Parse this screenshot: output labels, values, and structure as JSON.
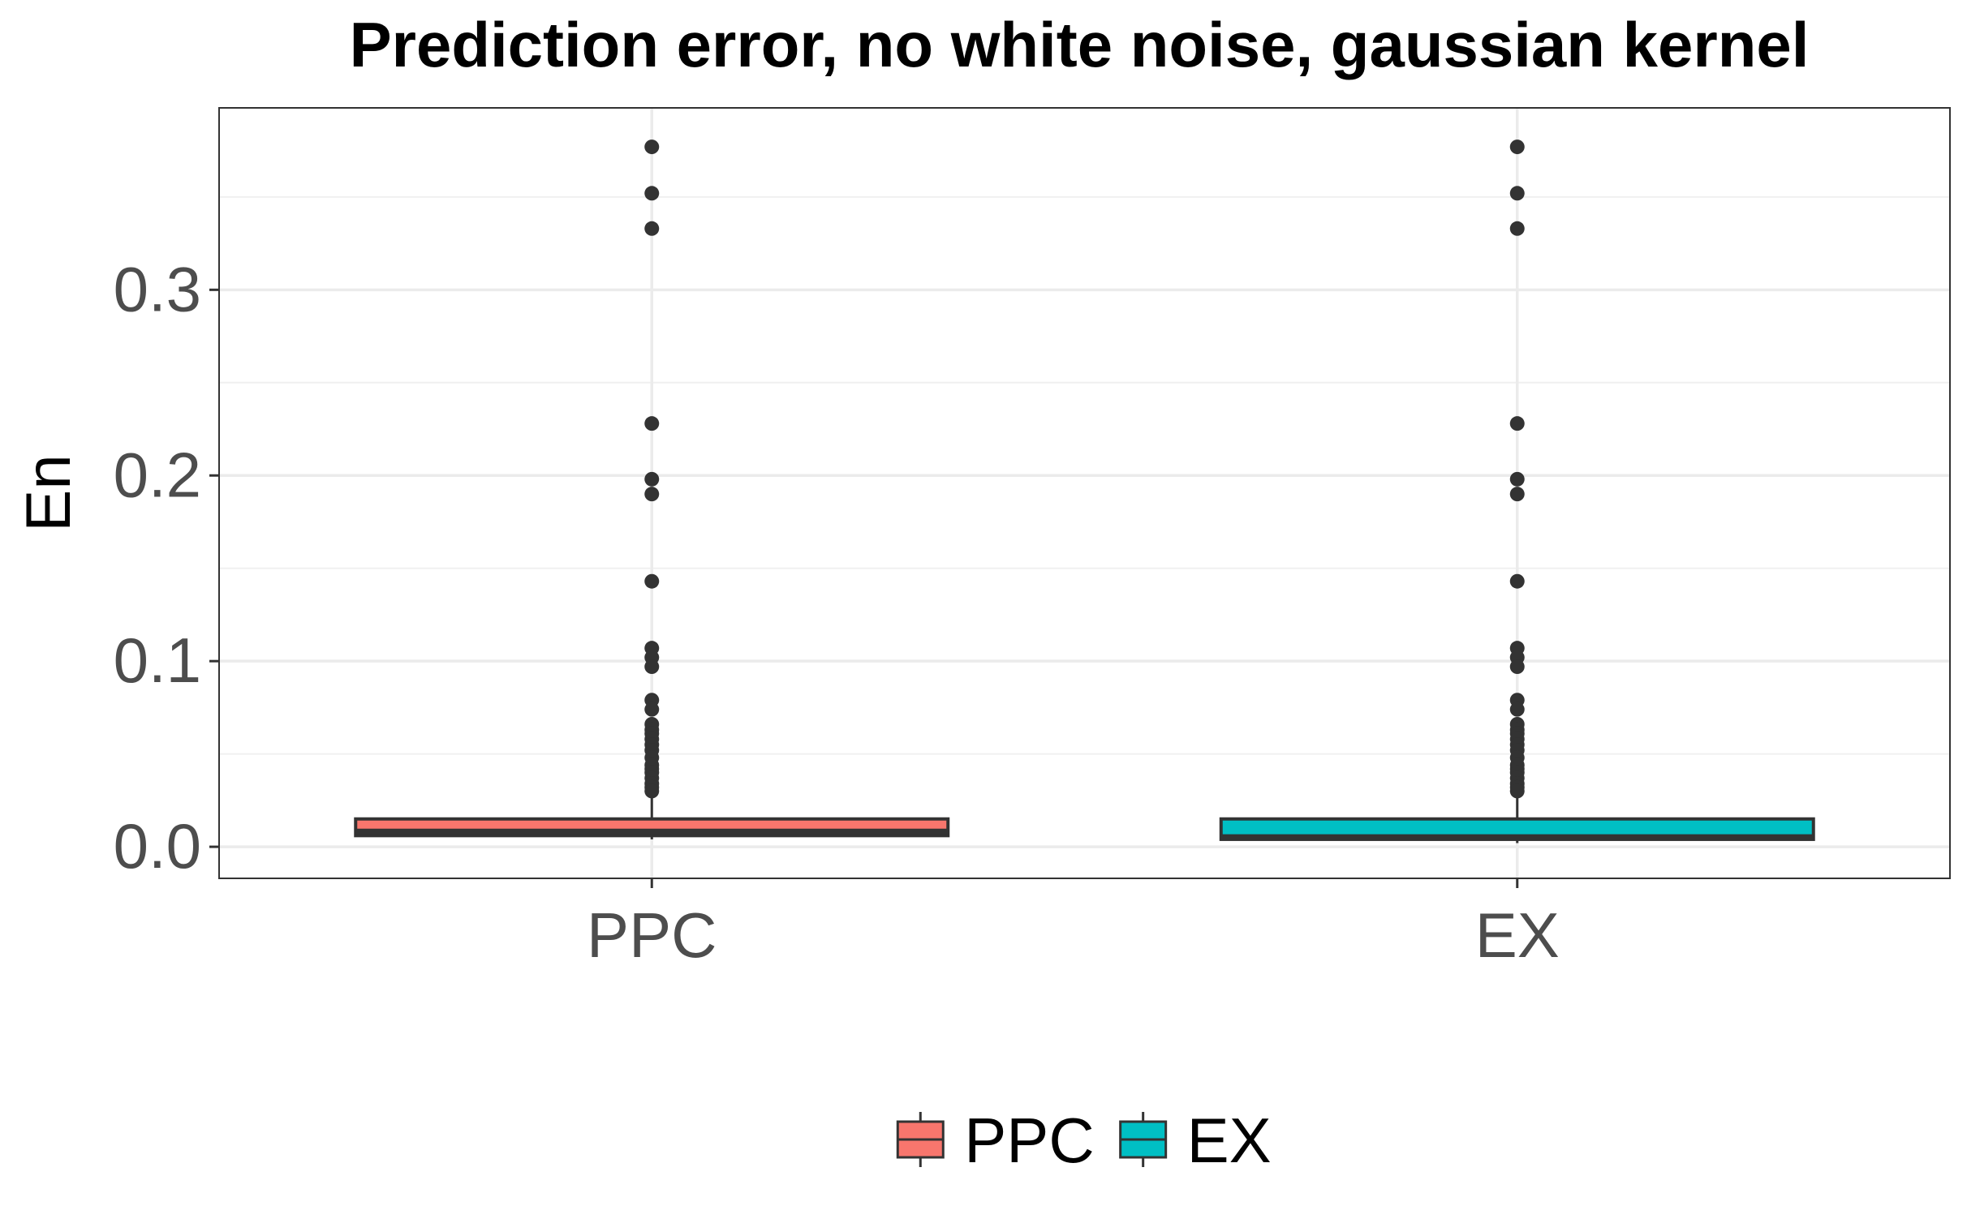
{
  "chart_data": {
    "type": "boxplot",
    "title": "Prediction error, no white noise, gaussian kernel",
    "xlabel": "",
    "ylabel": "En",
    "ylim": [
      -0.017,
      0.398
    ],
    "yticks": [
      0.0,
      0.1,
      0.2,
      0.3
    ],
    "ytick_labels": [
      "0.0",
      "0.1",
      "0.2",
      "0.3"
    ],
    "grid": true,
    "legend_position": "bottom",
    "categories": [
      "PPC",
      "EX"
    ],
    "series": [
      {
        "name": "PPC",
        "color": "#F8766D",
        "box": {
          "min": 0.004,
          "q1": 0.006,
          "median": 0.008,
          "q3": 0.015,
          "max": 0.029
        },
        "outliers": [
          0.377,
          0.352,
          0.333,
          0.228,
          0.198,
          0.19,
          0.143,
          0.107,
          0.102,
          0.097,
          0.079,
          0.074,
          0.066,
          0.063,
          0.061,
          0.058,
          0.055,
          0.052,
          0.048,
          0.044,
          0.042,
          0.04,
          0.037,
          0.034,
          0.032,
          0.03
        ]
      },
      {
        "name": "EX",
        "color": "#00BFC4",
        "box": {
          "min": 0.002,
          "q1": 0.004,
          "median": 0.005,
          "q3": 0.015,
          "max": 0.029
        },
        "outliers": [
          0.377,
          0.352,
          0.333,
          0.228,
          0.198,
          0.19,
          0.143,
          0.107,
          0.102,
          0.097,
          0.079,
          0.074,
          0.066,
          0.063,
          0.061,
          0.058,
          0.055,
          0.052,
          0.048,
          0.044,
          0.042,
          0.04,
          0.037,
          0.034,
          0.032,
          0.03
        ]
      }
    ]
  }
}
